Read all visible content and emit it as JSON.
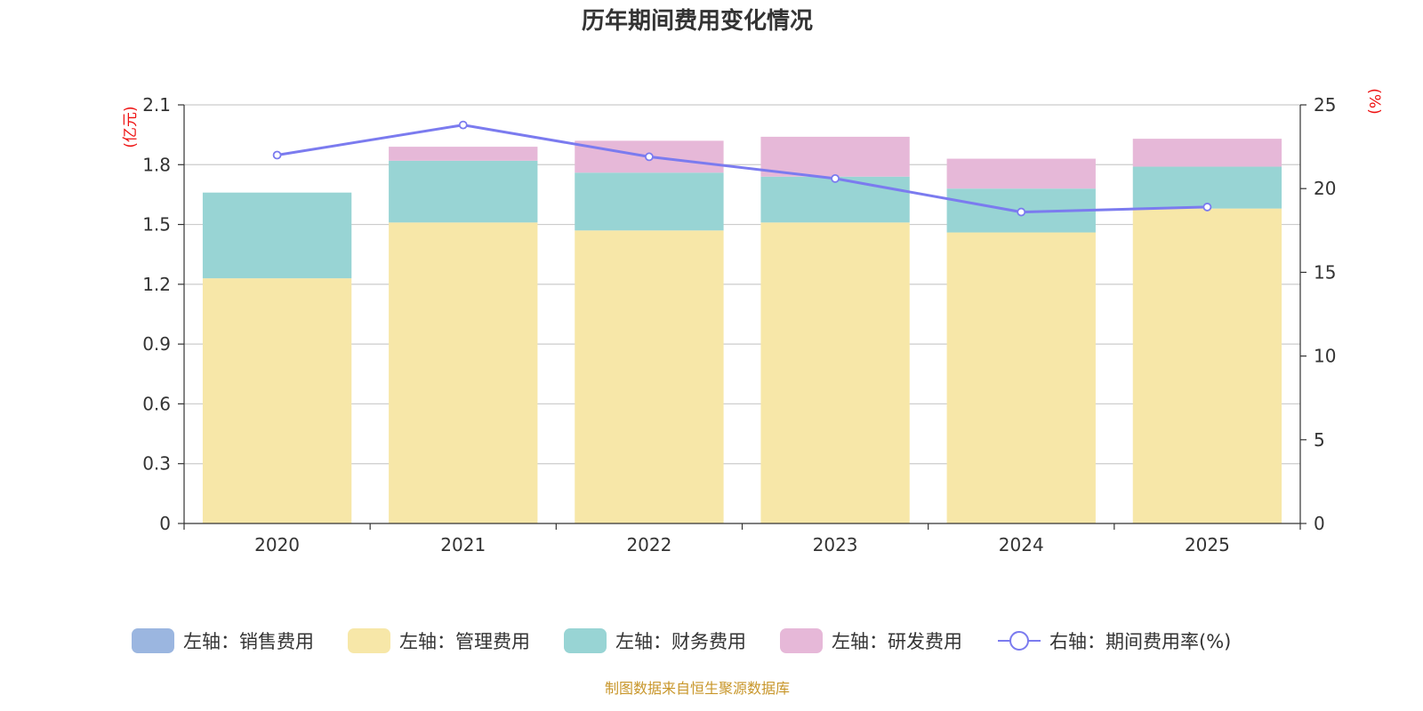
{
  "chart_data": {
    "type": "bar",
    "title": "历年期间费用变化情况",
    "source": "制图数据来自恒生聚源数据库",
    "categories": [
      "2020",
      "2021",
      "2022",
      "2023",
      "2024",
      "2025"
    ],
    "left_axis": {
      "unit": "(亿元)",
      "ylim": [
        0,
        2.1
      ],
      "ticks": [
        "0",
        "0.3",
        "0.6",
        "0.9",
        "1.2",
        "1.5",
        "1.8",
        "2.1"
      ]
    },
    "right_axis": {
      "unit": "(%)",
      "ylim": [
        0,
        25
      ],
      "ticks": [
        "0",
        "5",
        "10",
        "15",
        "20",
        "25"
      ]
    },
    "stacked": true,
    "series": [
      {
        "name": "左轴：销售费用",
        "axis": "left",
        "type": "bar",
        "color": "#9bb6e0",
        "values": [
          0,
          0,
          0,
          0,
          0,
          0
        ]
      },
      {
        "name": "左轴：管理费用",
        "axis": "left",
        "type": "bar",
        "color": "#f7e7a8",
        "values": [
          1.23,
          1.51,
          1.47,
          1.51,
          1.46,
          1.58
        ]
      },
      {
        "name": "左轴：财务费用",
        "axis": "left",
        "type": "bar",
        "color": "#98d4d4",
        "values": [
          0.43,
          0.31,
          0.29,
          0.23,
          0.22,
          0.21
        ]
      },
      {
        "name": "左轴：研发费用",
        "axis": "left",
        "type": "bar",
        "color": "#e6b8d8",
        "values": [
          0,
          0.07,
          0.16,
          0.2,
          0.15,
          0.14
        ]
      },
      {
        "name": "右轴：期间费用率(%)",
        "axis": "right",
        "type": "line",
        "color": "#7b7bef",
        "values": [
          22.0,
          23.8,
          21.9,
          20.6,
          18.6,
          18.9
        ]
      }
    ]
  }
}
